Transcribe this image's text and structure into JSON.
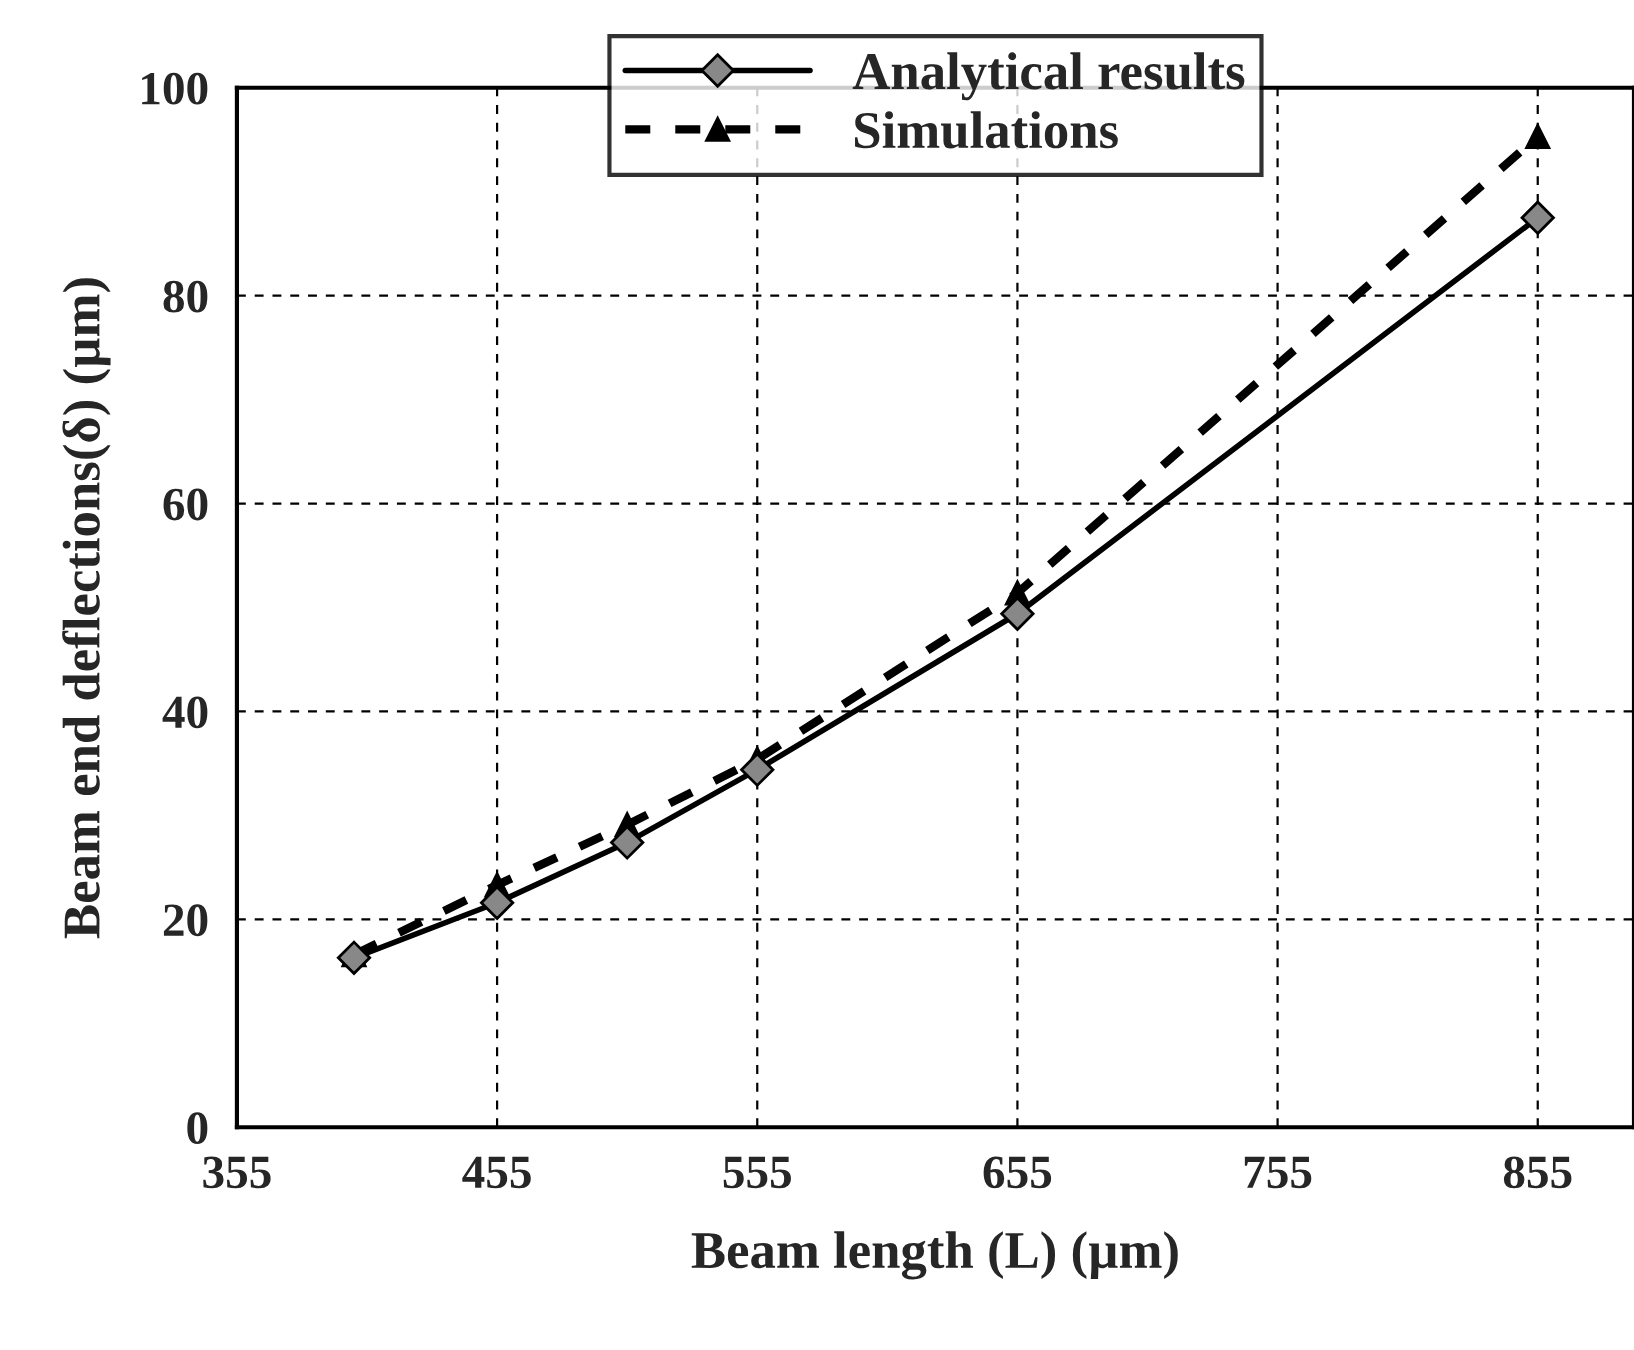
{
  "chart_data": {
    "type": "line",
    "xlabel": "Beam length (L) (µm)",
    "ylabel": "Beam end deflections(δ) (µm)",
    "x": [
      400,
      455,
      505,
      555,
      655,
      855
    ],
    "series": [
      {
        "name": "Analytical results",
        "color": "#000000",
        "marker": "diamond",
        "line_style": "solid",
        "values": [
          16.3,
          21.6,
          27.4,
          34.4,
          49.4,
          87.5
        ]
      },
      {
        "name": "Simulations",
        "color": "#000000",
        "marker": "triangle",
        "line_style": "dashed",
        "values": [
          16.6,
          23.3,
          29.1,
          35.4,
          51.4,
          95.3
        ]
      }
    ],
    "xlim": [
      355,
      892
    ],
    "xticks": [
      355,
      455,
      555,
      655,
      755,
      855
    ],
    "ylim": [
      0,
      100
    ],
    "yticks": [
      0,
      20,
      40,
      60,
      80,
      100
    ],
    "grid": true,
    "legend": "top"
  }
}
